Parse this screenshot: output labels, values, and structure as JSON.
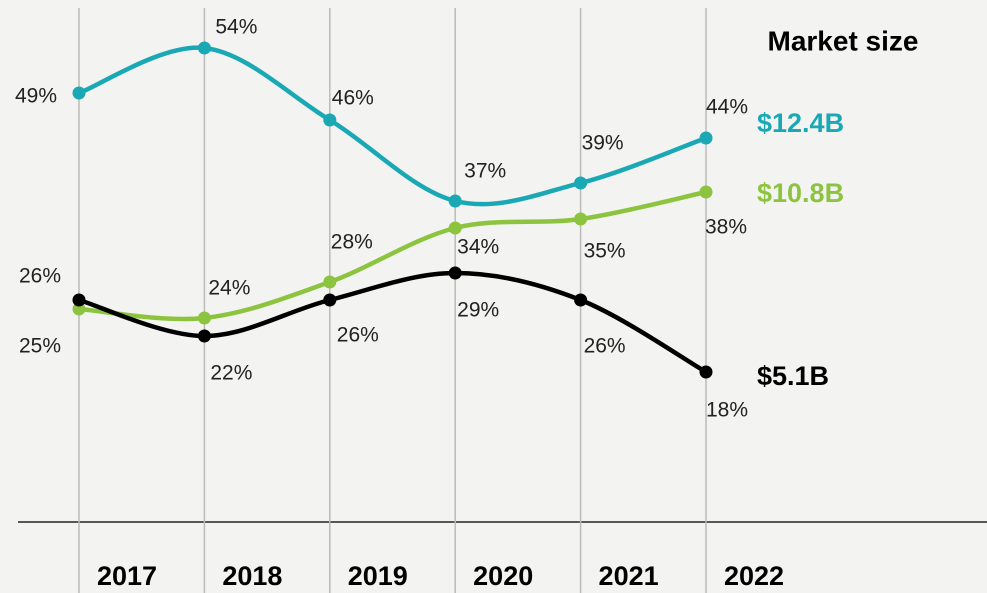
{
  "chart_data": {
    "type": "line",
    "title": "Market size",
    "categories": [
      "2017",
      "2018",
      "2019",
      "2020",
      "2021",
      "2022"
    ],
    "ylim": [
      0,
      59
    ],
    "series": [
      {
        "name": "$12.4B",
        "color": "#1aa8b5",
        "values": [
          49,
          54,
          46,
          37,
          39,
          44
        ],
        "value_labels": [
          "49%",
          "54%",
          "46%",
          "37%",
          "39%",
          "44%"
        ]
      },
      {
        "name": "$10.8B",
        "color": "#8dc43f",
        "values": [
          25,
          24,
          28,
          34,
          35,
          38
        ],
        "value_labels": [
          "25%",
          "24%",
          "28%",
          "34%",
          "35%",
          "38%"
        ]
      },
      {
        "name": "$5.1B",
        "color": "#000000",
        "values": [
          26,
          22,
          26,
          29,
          26,
          18
        ],
        "value_labels": [
          "26%",
          "22%",
          "26%",
          "29%",
          "26%",
          "18%"
        ]
      }
    ]
  }
}
